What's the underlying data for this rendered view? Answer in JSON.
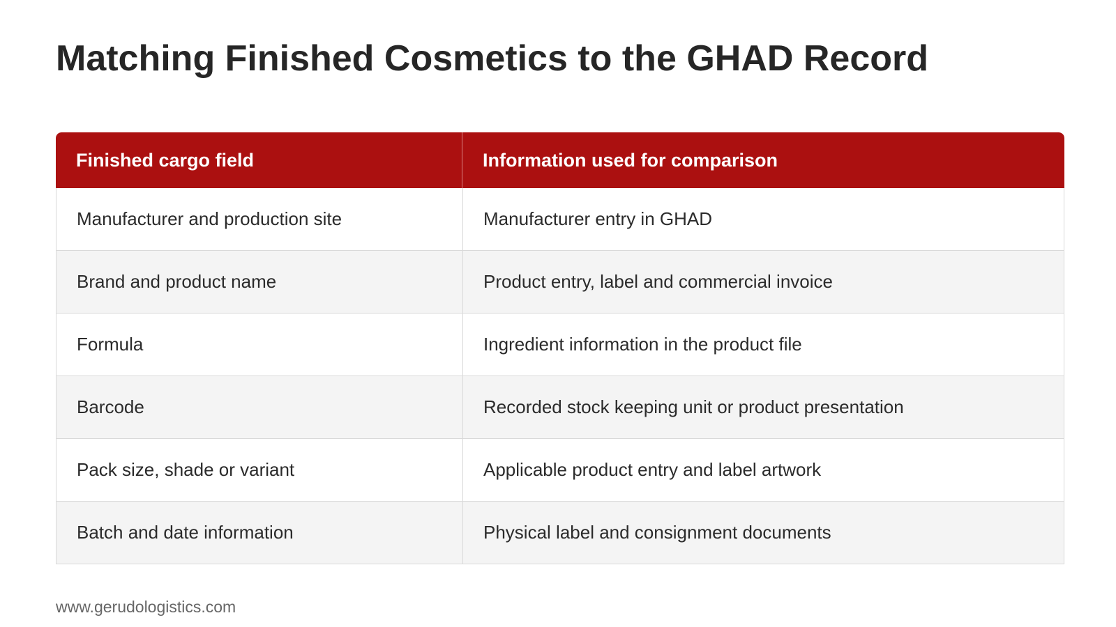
{
  "title": "Matching Finished Cosmetics to the GHAD Record",
  "table": {
    "headers": [
      "Finished cargo field",
      "Information used for comparison"
    ],
    "rows": [
      [
        "Manufacturer and production site",
        "Manufacturer entry in GHAD"
      ],
      [
        "Brand and product name",
        "Product entry, label and commercial invoice"
      ],
      [
        "Formula",
        "Ingredient information in the product file"
      ],
      [
        "Barcode",
        "Recorded stock keeping unit or product presentation"
      ],
      [
        "Pack size, shade or variant",
        "Applicable product entry and label artwork"
      ],
      [
        "Batch and date information",
        "Physical label and consignment documents"
      ]
    ]
  },
  "colors": {
    "header_bg": "#ab1010",
    "alt_row_bg": "#f4f4f4"
  },
  "footer": "www.gerudologistics.com"
}
